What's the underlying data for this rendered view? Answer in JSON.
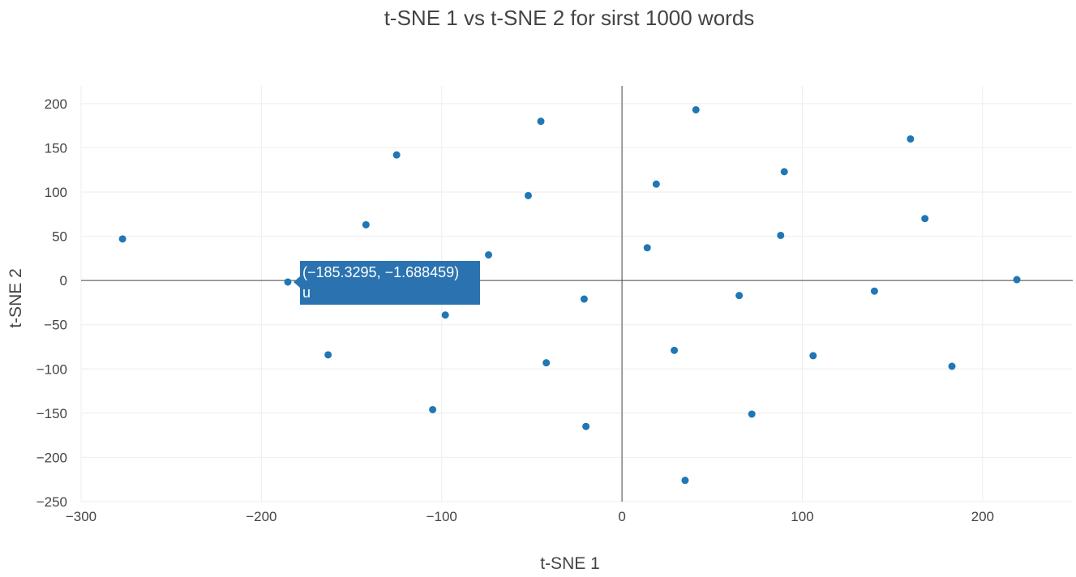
{
  "chart_data": {
    "type": "scatter",
    "title": "t-SNE 1 vs t-SNE 2 for sirst 1000 words",
    "xlabel": "t-SNE 1",
    "ylabel": "t-SNE 2",
    "xlim": [
      -300,
      250
    ],
    "ylim": [
      -250,
      220
    ],
    "xticks": [
      -300,
      -200,
      -100,
      0,
      100,
      200
    ],
    "xtick_labels": [
      "−300",
      "−200",
      "−100",
      "0",
      "100",
      "200"
    ],
    "yticks": [
      -250,
      -200,
      -150,
      -100,
      -50,
      0,
      50,
      100,
      150,
      200
    ],
    "ytick_labels": [
      "−250",
      "−200",
      "−150",
      "−100",
      "−50",
      "0",
      "50",
      "100",
      "150",
      "200"
    ],
    "grid": true,
    "zero_lines": true,
    "marker_color": "#1f77b4",
    "points": [
      {
        "x": -277,
        "y": 47
      },
      {
        "x": -185.3295,
        "y": -1.688459
      },
      {
        "x": -163,
        "y": -84
      },
      {
        "x": -142,
        "y": 63
      },
      {
        "x": -125,
        "y": 142
      },
      {
        "x": -105,
        "y": -146
      },
      {
        "x": -98,
        "y": -39
      },
      {
        "x": -74,
        "y": 29
      },
      {
        "x": -52,
        "y": 96
      },
      {
        "x": -45,
        "y": 180
      },
      {
        "x": -42,
        "y": -93
      },
      {
        "x": -21,
        "y": -21
      },
      {
        "x": -20,
        "y": -165
      },
      {
        "x": 14,
        "y": 37
      },
      {
        "x": 19,
        "y": 109
      },
      {
        "x": 29,
        "y": -79
      },
      {
        "x": 35,
        "y": -226
      },
      {
        "x": 41,
        "y": 193
      },
      {
        "x": 65,
        "y": -17
      },
      {
        "x": 72,
        "y": -151
      },
      {
        "x": 88,
        "y": 51
      },
      {
        "x": 90,
        "y": 123
      },
      {
        "x": 106,
        "y": -85
      },
      {
        "x": 140,
        "y": -12
      },
      {
        "x": 160,
        "y": 160
      },
      {
        "x": 168,
        "y": 70
      },
      {
        "x": 183,
        "y": -97
      },
      {
        "x": 219,
        "y": 1
      }
    ],
    "hover": {
      "coords_label": "(−185.3295, −1.688459)",
      "word": "u",
      "color": "#2a73b0"
    }
  }
}
